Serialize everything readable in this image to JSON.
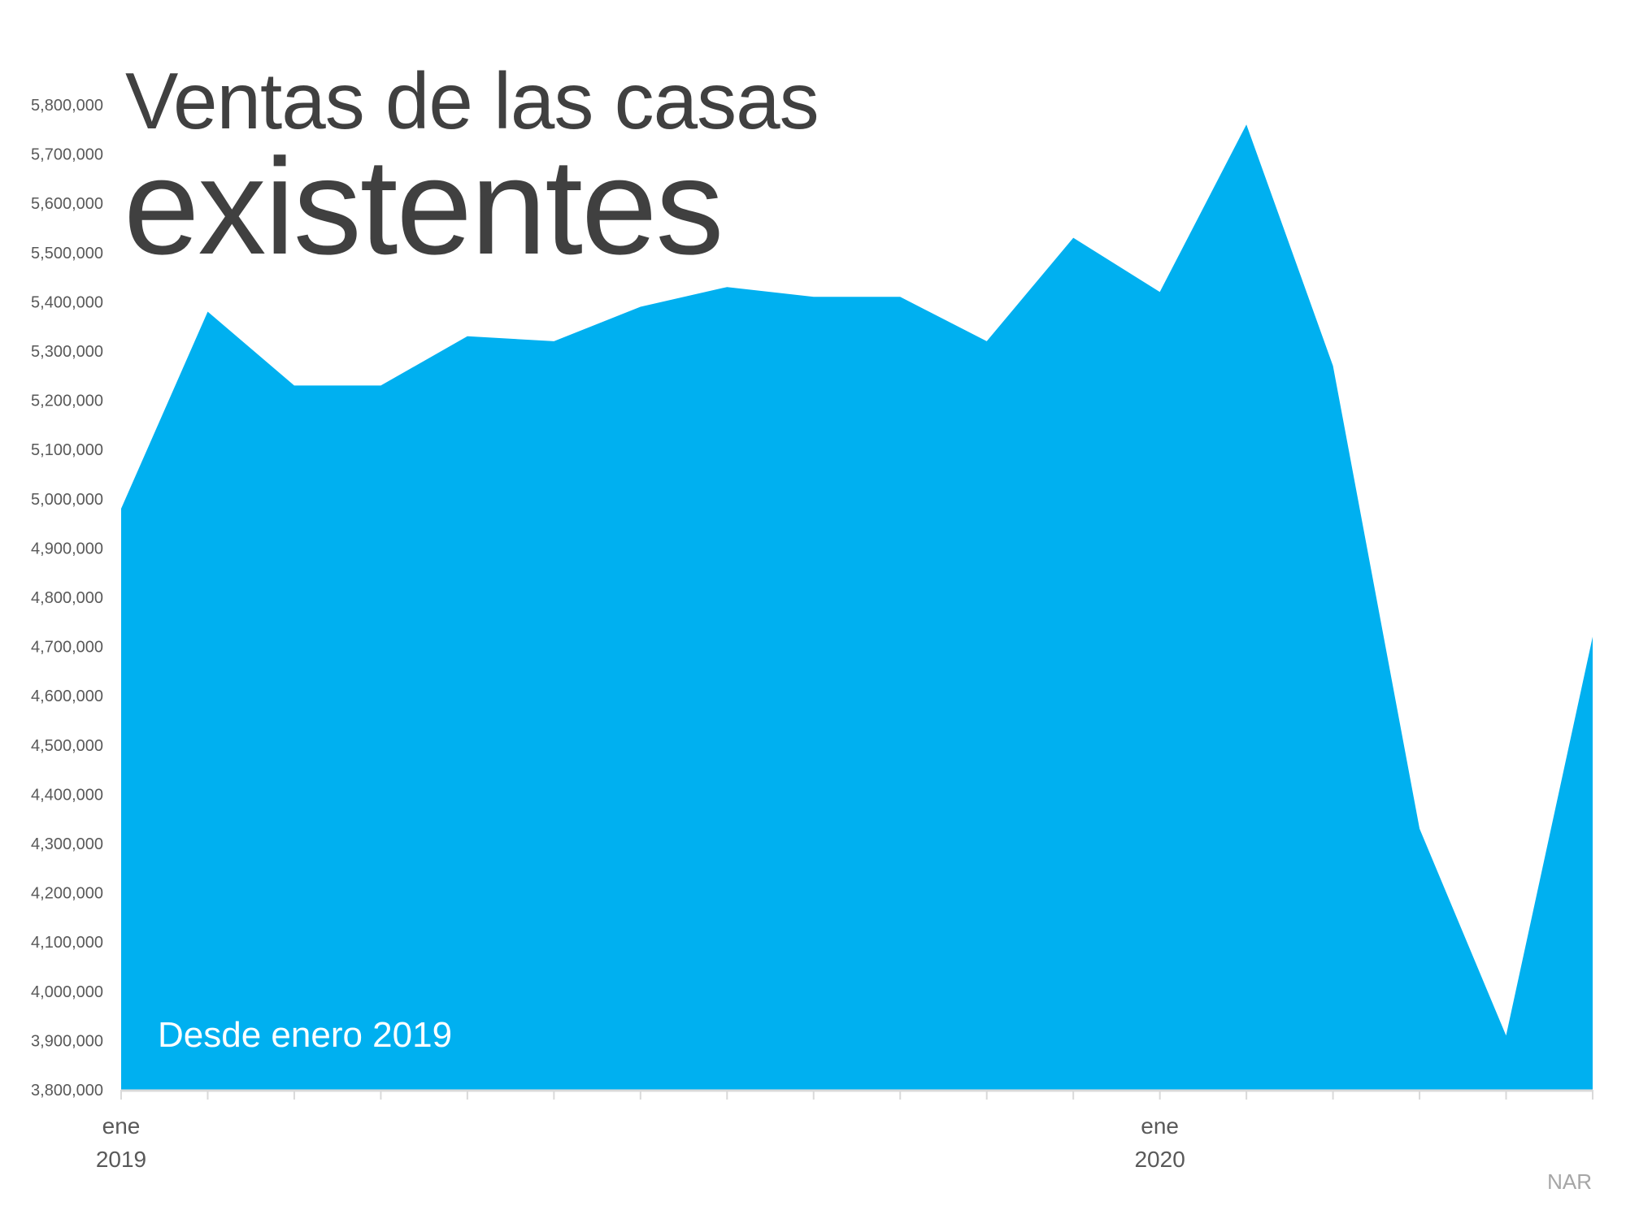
{
  "title": {
    "line1": "Ventas de las casas",
    "line2": "existentes"
  },
  "annotation": "Desde enero 2019",
  "source": "NAR",
  "colors": {
    "area": "#00B0F0",
    "text": "#404040",
    "axis": "#D9D9D9",
    "source": "#A6A6A6"
  },
  "chart_data": {
    "type": "area",
    "title": "Ventas de las casas existentes",
    "xlabel": "",
    "ylabel": "",
    "x": [
      "2019-01",
      "2019-02",
      "2019-03",
      "2019-04",
      "2019-05",
      "2019-06",
      "2019-07",
      "2019-08",
      "2019-09",
      "2019-10",
      "2019-11",
      "2019-12",
      "2020-01",
      "2020-02",
      "2020-03",
      "2020-04",
      "2020-05",
      "2020-06"
    ],
    "values": [
      4980000,
      5380000,
      5230000,
      5230000,
      5330000,
      5320000,
      5390000,
      5430000,
      5410000,
      5410000,
      5320000,
      5530000,
      5420000,
      5760000,
      5270000,
      4330000,
      3910000,
      4720000
    ],
    "ylim": [
      3800000,
      5800000
    ],
    "ytick_step": 100000,
    "ytick_labels": [
      "3,800,000",
      "3,900,000",
      "4,000,000",
      "4,100,000",
      "4,200,000",
      "4,300,000",
      "4,400,000",
      "4,500,000",
      "4,600,000",
      "4,700,000",
      "4,800,000",
      "4,900,000",
      "5,000,000",
      "5,100,000",
      "5,200,000",
      "5,300,000",
      "5,400,000",
      "5,500,000",
      "5,600,000",
      "5,700,000",
      "5,800,000"
    ],
    "xtick_labels": [
      {
        "index": 0,
        "month": "ene",
        "year": "2019"
      },
      {
        "index": 12,
        "month": "ene",
        "year": "2020"
      }
    ],
    "grid": false,
    "legend": "none"
  }
}
